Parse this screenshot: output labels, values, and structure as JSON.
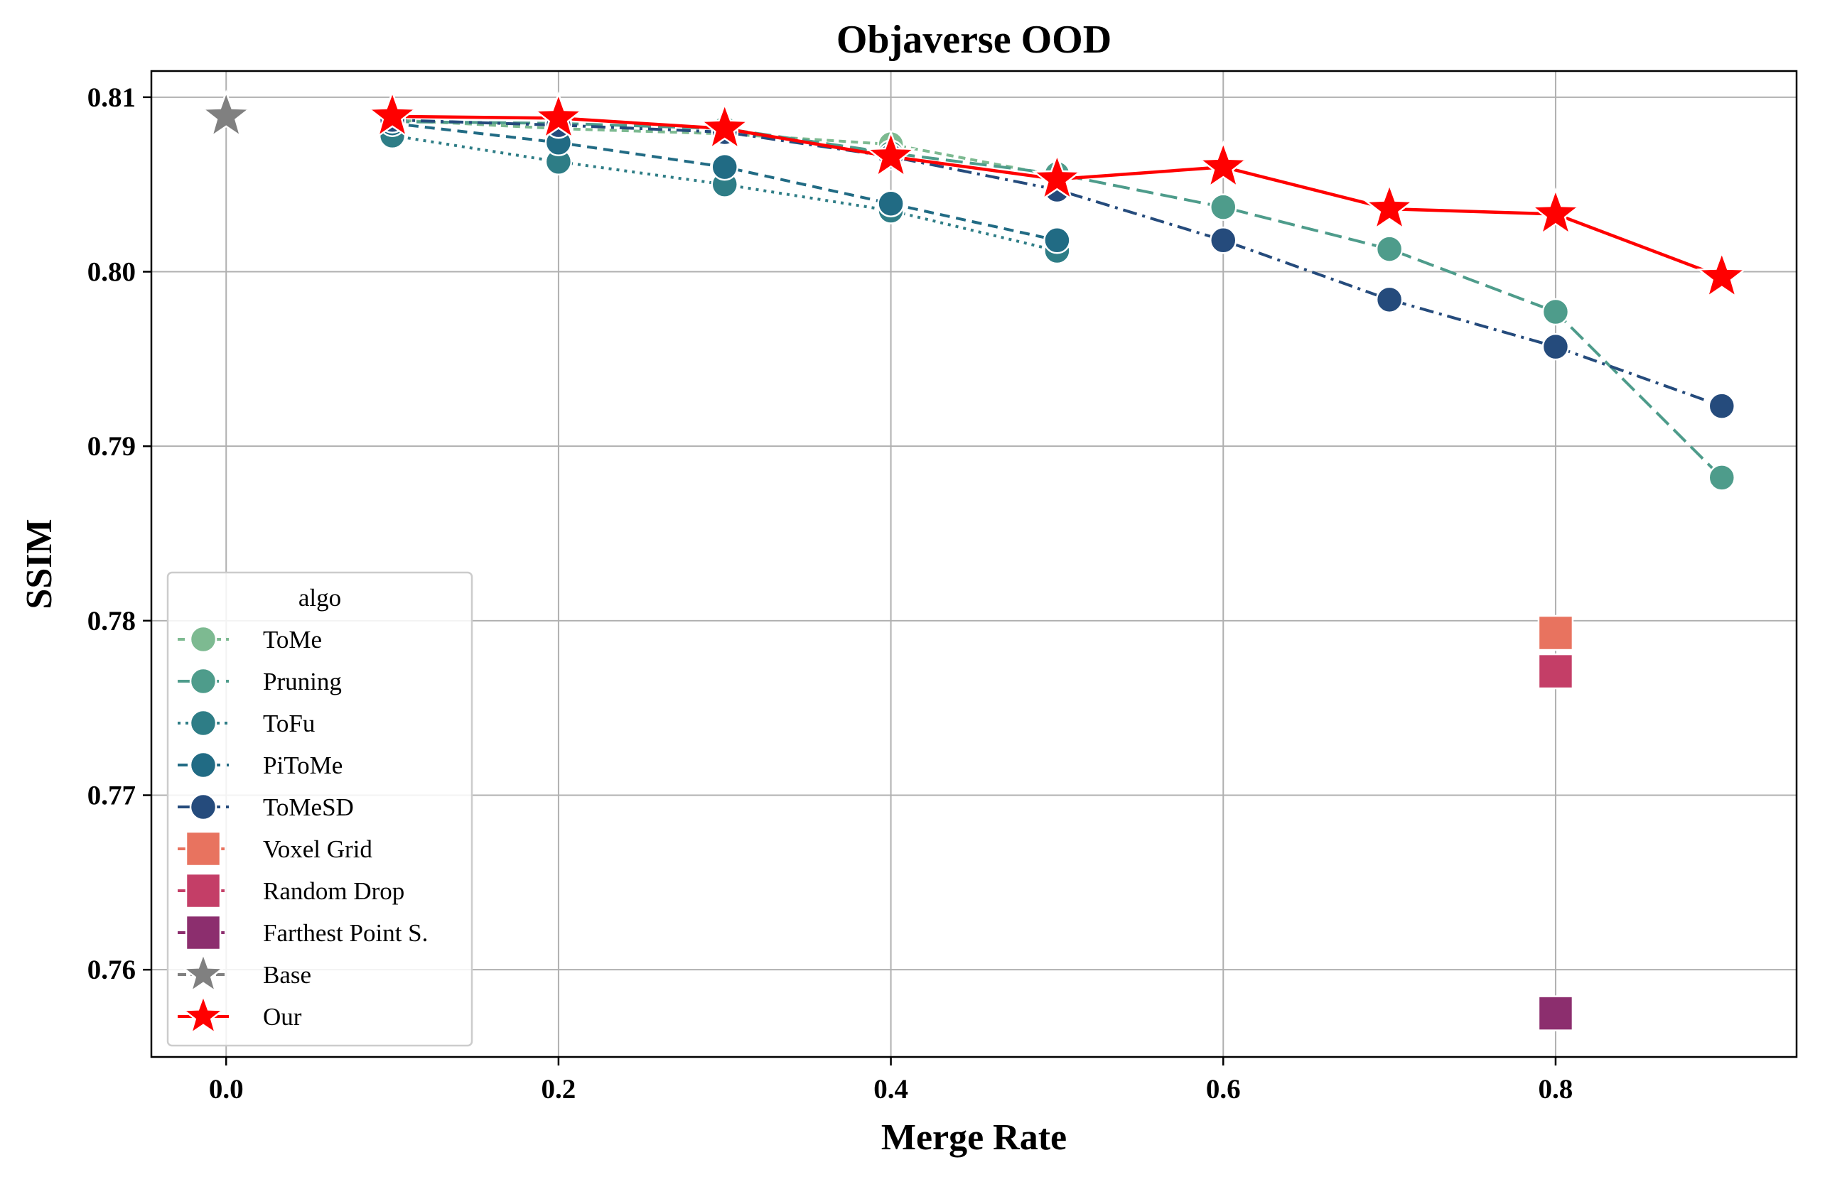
{
  "chart_data": {
    "type": "line",
    "title": "Objaverse OOD",
    "xlabel": "Merge Rate",
    "ylabel": "SSIM",
    "xlim": [
      -0.045,
      0.945
    ],
    "ylim": [
      0.755,
      0.8115
    ],
    "xticks": [
      0.0,
      0.2,
      0.4,
      0.6,
      0.8
    ],
    "xtick_labels": [
      "0.0",
      "0.2",
      "0.4",
      "0.6",
      "0.8"
    ],
    "yticks": [
      0.76,
      0.77,
      0.78,
      0.79,
      0.8,
      0.81
    ],
    "ytick_labels": [
      "0.76",
      "0.77",
      "0.78",
      "0.79",
      "0.80",
      "0.81"
    ],
    "grid": true,
    "legend": {
      "title": "algo",
      "position": "lower-left"
    },
    "series": [
      {
        "name": "ToMe",
        "color": "#7dba91",
        "dash": "10,7",
        "marker": "circle",
        "x": [
          0.1,
          0.2,
          0.3,
          0.4,
          0.5
        ],
        "y": [
          0.8087,
          0.8082,
          0.8079,
          0.8073,
          0.8055
        ]
      },
      {
        "name": "Pruning",
        "color": "#4e9c8b",
        "dash": "24,10",
        "marker": "circle",
        "x": [
          0.1,
          0.2,
          0.3,
          0.4,
          0.5,
          0.6,
          0.7,
          0.8,
          0.9
        ],
        "y": [
          0.8086,
          0.8085,
          0.8082,
          0.8068,
          0.8056,
          0.8037,
          0.8013,
          0.7977,
          0.7882
        ]
      },
      {
        "name": "ToFu",
        "color": "#2e7d86",
        "dash": "4,7",
        "marker": "circle",
        "x": [
          0.1,
          0.2,
          0.3,
          0.4,
          0.5
        ],
        "y": [
          0.8078,
          0.8063,
          0.805,
          0.8035,
          0.8012
        ]
      },
      {
        "name": "PiToMe",
        "color": "#216b84",
        "dash": "14,9",
        "marker": "circle",
        "x": [
          0.1,
          0.2,
          0.3,
          0.4,
          0.5
        ],
        "y": [
          0.8085,
          0.8074,
          0.806,
          0.8039,
          0.8018
        ]
      },
      {
        "name": "ToMeSD",
        "color": "#254b7c",
        "dash": "20,8,4,8",
        "marker": "circle",
        "x": [
          0.1,
          0.2,
          0.3,
          0.4,
          0.5,
          0.6,
          0.7,
          0.8,
          0.9
        ],
        "y": [
          0.8087,
          0.8084,
          0.808,
          0.8066,
          0.8047,
          0.8018,
          0.7984,
          0.7957,
          0.7923
        ]
      },
      {
        "name": "Voxel Grid",
        "color": "#e8735f",
        "dash": "12,6",
        "marker": "square",
        "x": [
          0.8
        ],
        "y": [
          0.7793
        ]
      },
      {
        "name": "Random Drop",
        "color": "#c43e67",
        "dash": "12,6",
        "marker": "square",
        "x": [
          0.8
        ],
        "y": [
          0.7771
        ]
      },
      {
        "name": "Farthest Point S.",
        "color": "#8c2e6e",
        "dash": "12,6",
        "marker": "square",
        "x": [
          0.8
        ],
        "y": [
          0.7575
        ]
      },
      {
        "name": "Base",
        "color": "#808080",
        "dash": "12,6",
        "marker": "star",
        "x": [
          0.0
        ],
        "y": [
          0.8089
        ]
      },
      {
        "name": "Our",
        "color": "#ff0000",
        "dash": "",
        "marker": "star",
        "x": [
          0.1,
          0.2,
          0.3,
          0.4,
          0.5,
          0.6,
          0.7,
          0.8,
          0.9
        ],
        "y": [
          0.8089,
          0.8088,
          0.8082,
          0.8066,
          0.8053,
          0.806,
          0.8036,
          0.8033,
          0.7997
        ]
      }
    ]
  }
}
